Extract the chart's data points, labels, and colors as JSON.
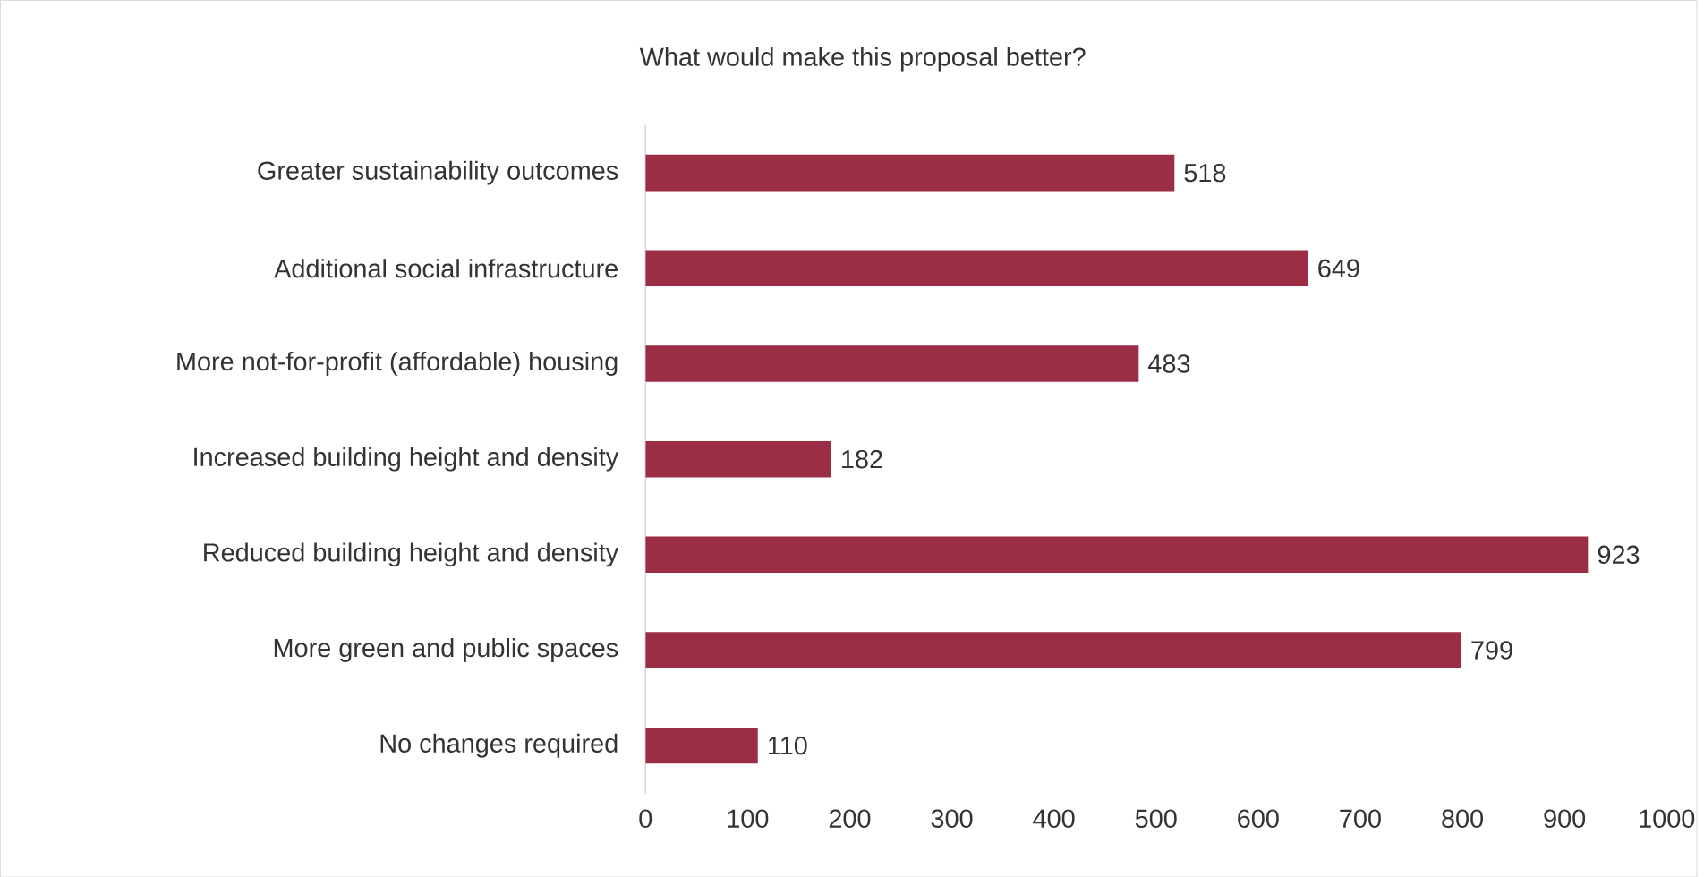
{
  "chart_data": {
    "type": "bar",
    "orientation": "horizontal",
    "title": "What would make this proposal better?",
    "categories": [
      "Greater sustainability outcomes",
      "Additional social infrastructure",
      "More not-for-profit (affordable) housing",
      "Increased building height and density",
      "Reduced building height and density",
      "More green and public spaces",
      "No changes required"
    ],
    "values": [
      518,
      649,
      483,
      182,
      923,
      799,
      110
    ],
    "color": "#9b2d45",
    "xlim": [
      0,
      1000
    ],
    "xticks": [
      0,
      100,
      200,
      300,
      400,
      500,
      600,
      700,
      800,
      900,
      1000
    ],
    "data_labels": true,
    "grid": false
  }
}
